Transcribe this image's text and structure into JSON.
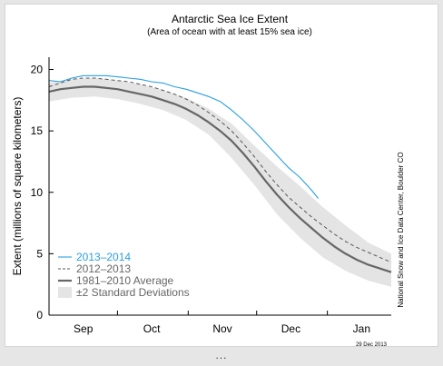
{
  "chart_data": {
    "type": "line",
    "title": "Antarctic Sea Ice Extent",
    "subtitle": "(Area of ocean with at least 15% sea ice)",
    "ylabel": "Extent (millions of square kilometers)",
    "xlabel": "",
    "ylim": [
      0,
      21
    ],
    "x_tick_labels": [
      "Sep",
      "Oct",
      "Nov",
      "Dec",
      "Jan"
    ],
    "x_tick_days": [
      15,
      45,
      76,
      106,
      137
    ],
    "y_ticks": [
      0,
      5,
      10,
      15,
      20
    ],
    "x_unit": "days since Sep 1",
    "legend_position": "bottom-left",
    "series": [
      {
        "name": "2013–2014",
        "style": "solid",
        "color": "#2a9fe0",
        "x": [
          0,
          5,
          10,
          15,
          20,
          25,
          30,
          35,
          40,
          45,
          50,
          55,
          60,
          65,
          70,
          75,
          80,
          85,
          90,
          95,
          100,
          105,
          110,
          115,
          118
        ],
        "y": [
          19.1,
          19.0,
          19.3,
          19.5,
          19.5,
          19.5,
          19.4,
          19.3,
          19.2,
          19.0,
          18.9,
          18.6,
          18.4,
          18.1,
          17.8,
          17.4,
          16.7,
          15.9,
          15.0,
          14.0,
          13.0,
          12.0,
          11.2,
          10.2,
          9.5
        ]
      },
      {
        "name": "2012–2013",
        "style": "dashed",
        "color": "#555555",
        "x": [
          0,
          5,
          10,
          15,
          20,
          25,
          30,
          35,
          40,
          45,
          50,
          55,
          60,
          65,
          70,
          75,
          80,
          85,
          90,
          95,
          100,
          105,
          110,
          115,
          120,
          125,
          130,
          135,
          140,
          145,
          150
        ],
        "y": [
          18.6,
          18.9,
          19.2,
          19.3,
          19.3,
          19.2,
          19.1,
          19.0,
          18.8,
          18.6,
          18.3,
          18.0,
          17.6,
          17.1,
          16.5,
          15.8,
          15.0,
          14.0,
          12.9,
          11.7,
          10.6,
          9.6,
          8.8,
          8.0,
          7.3,
          6.6,
          6.0,
          5.5,
          5.1,
          4.7,
          4.3
        ]
      },
      {
        "name": "1981–2010 Average",
        "style": "solid-thick",
        "color": "#666666",
        "x": [
          0,
          5,
          10,
          15,
          20,
          25,
          30,
          35,
          40,
          45,
          50,
          55,
          60,
          65,
          70,
          75,
          80,
          85,
          90,
          95,
          100,
          105,
          110,
          115,
          120,
          125,
          130,
          135,
          140,
          145,
          150
        ],
        "y": [
          18.2,
          18.4,
          18.5,
          18.6,
          18.6,
          18.5,
          18.4,
          18.2,
          18.0,
          17.8,
          17.5,
          17.2,
          16.8,
          16.3,
          15.7,
          15.0,
          14.2,
          13.2,
          12.1,
          10.9,
          9.8,
          8.8,
          7.9,
          7.1,
          6.3,
          5.6,
          5.0,
          4.5,
          4.1,
          3.8,
          3.5
        ]
      },
      {
        "name": "±2 Standard Deviations",
        "style": "band",
        "color": "#e4e4e4",
        "x": [
          0,
          10,
          20,
          30,
          40,
          50,
          60,
          70,
          80,
          90,
          100,
          110,
          120,
          130,
          140,
          150
        ],
        "upper": [
          18.9,
          19.2,
          19.3,
          19.1,
          18.8,
          18.3,
          17.7,
          16.8,
          15.6,
          13.8,
          12.1,
          10.5,
          8.8,
          7.3,
          5.9,
          5.0
        ],
        "lower": [
          17.4,
          17.7,
          17.8,
          17.6,
          17.2,
          16.7,
          15.9,
          14.7,
          12.8,
          10.6,
          8.2,
          6.3,
          4.7,
          3.6,
          2.8,
          2.3
        ]
      }
    ]
  },
  "source_credit": "National Snow and Ice Data Center, Boulder CO",
  "date_stamp": "29 Dec 2013",
  "footer_ellipsis": "..."
}
